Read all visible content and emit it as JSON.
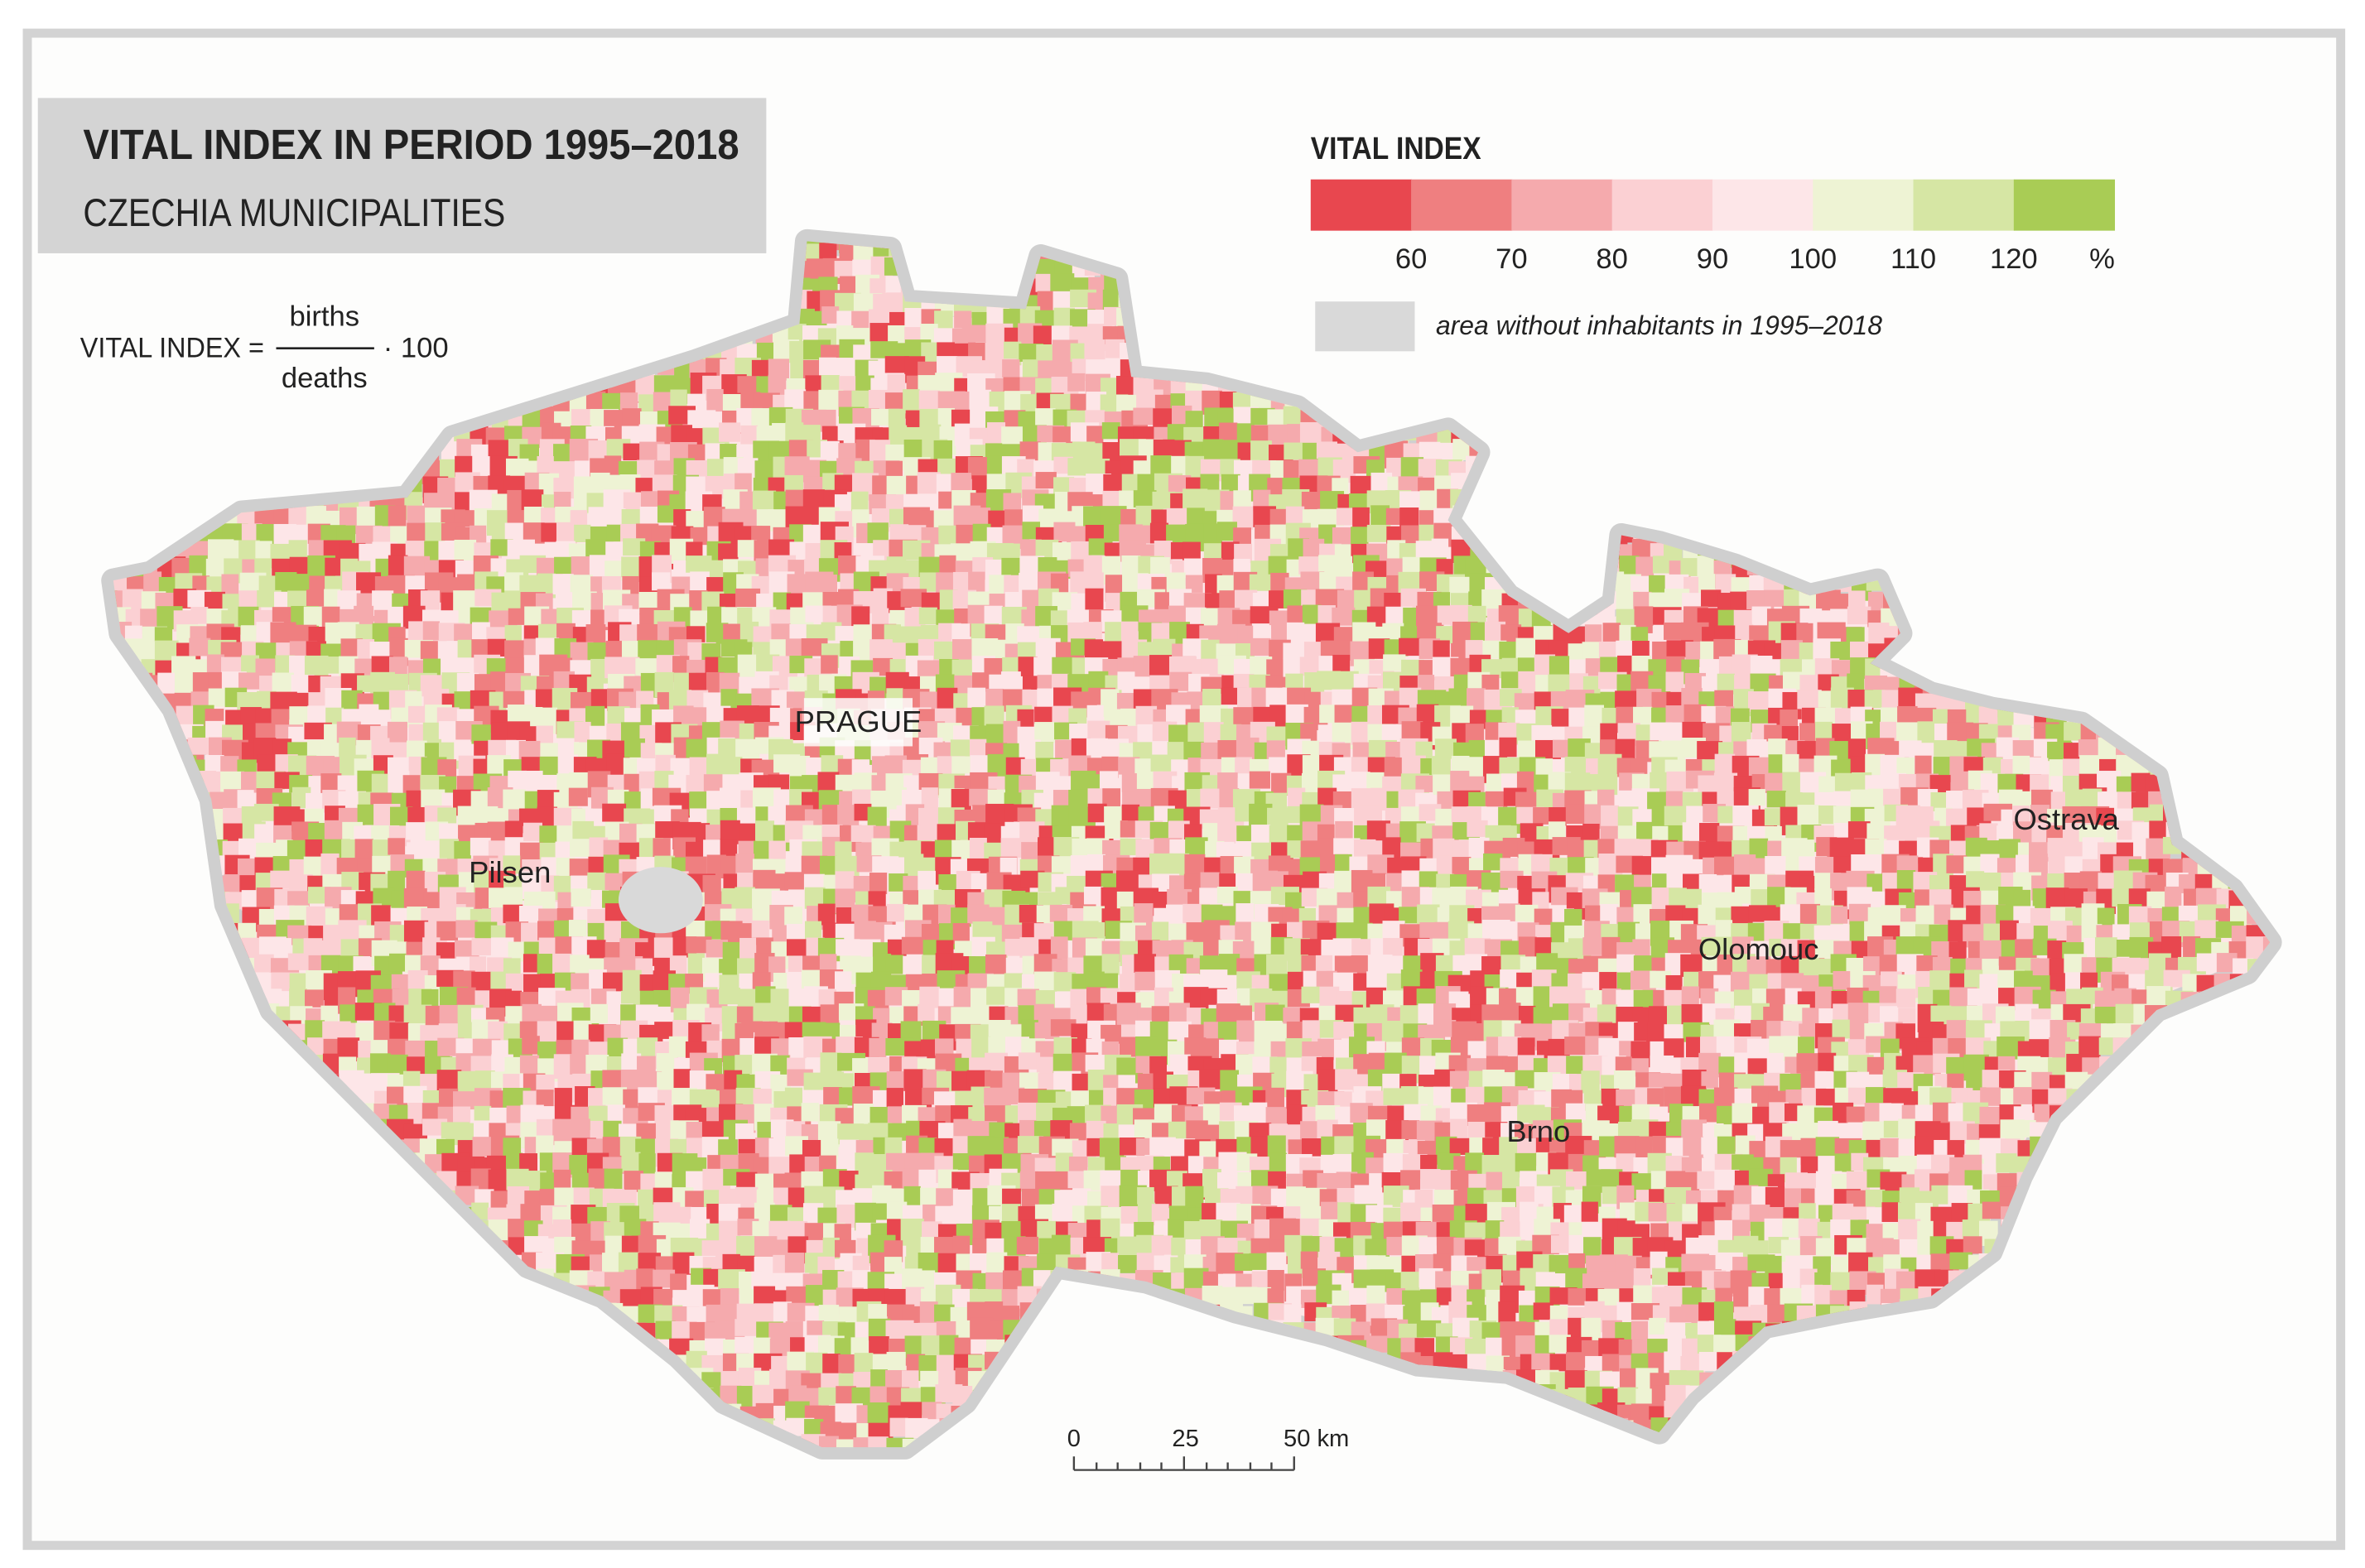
{
  "header": {
    "title": "VITAL INDEX IN PERIOD 1995–2018",
    "subtitle": "CZECHIA MUNICIPALITIES"
  },
  "formula": {
    "lhs": "VITAL INDEX =",
    "numerator": "births",
    "denominator": "deaths",
    "factor": "· 100"
  },
  "legend": {
    "title": "VITAL INDEX",
    "colors": [
      "#e8474f",
      "#ef7f80",
      "#f5aaad",
      "#fbd0d3",
      "#fde6e8",
      "#eef3d4",
      "#d6e6a4",
      "#a9cc55"
    ],
    "breaks": [
      60,
      70,
      80,
      90,
      100,
      110,
      120
    ],
    "unit": "%",
    "no_data_color": "#d9d9d9",
    "no_data_label": "area without inhabitants in 1995–2018"
  },
  "cities": [
    {
      "label": "PRAGUE"
    },
    {
      "label": "Pilsen"
    },
    {
      "label": "Brno"
    },
    {
      "label": "Olomouc"
    },
    {
      "label": "Ostrava"
    }
  ],
  "scale_bar": {
    "labels": [
      "0",
      "25",
      "50 km"
    ]
  }
}
